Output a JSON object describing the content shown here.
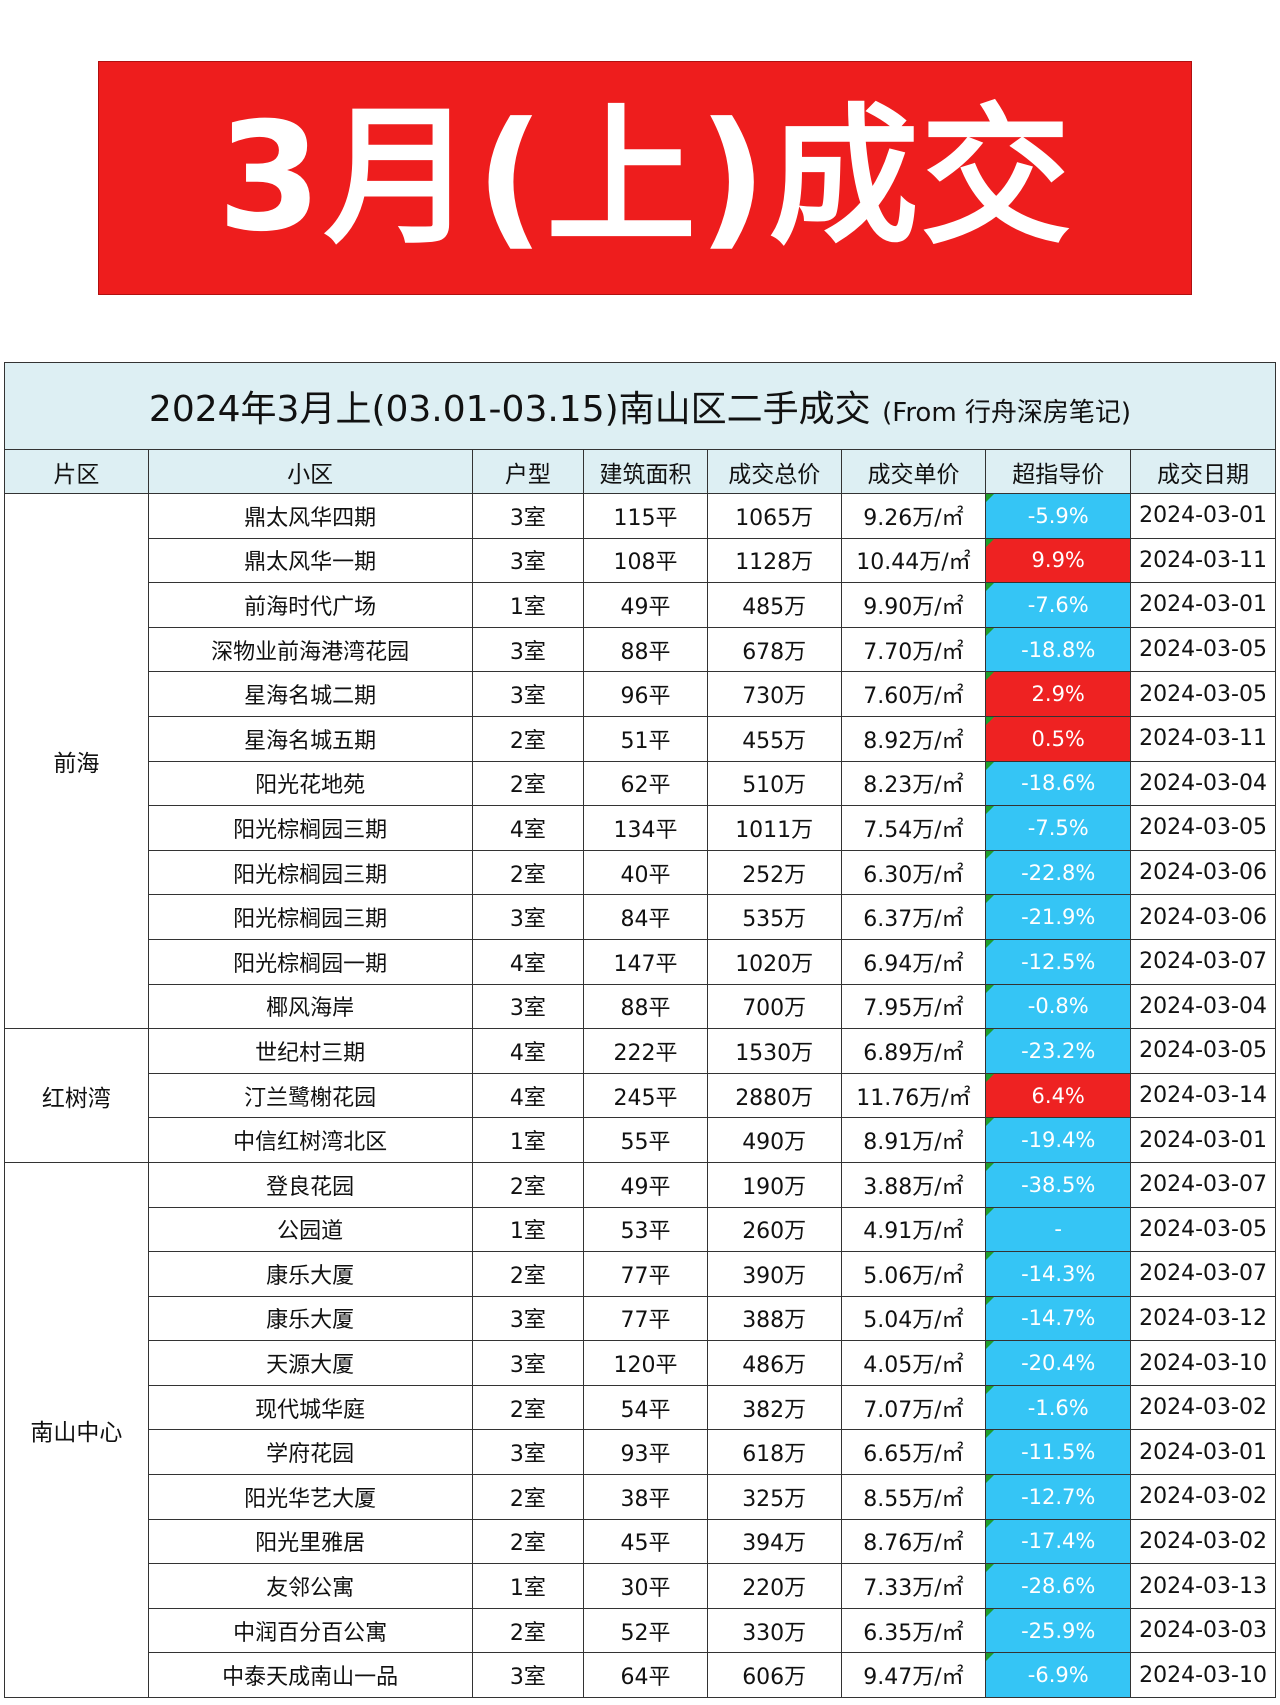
{
  "banner": {
    "text": "3月(上)成交"
  },
  "table": {
    "title_main": "2024年3月上(03.01-03.15)南山区二手成交",
    "title_source": "(From 行舟深房笔记)",
    "headers": [
      "片区",
      "小区",
      "户型",
      "建筑面积",
      "成交总价",
      "成交单价",
      "超指导价",
      "成交日期"
    ],
    "colors": {
      "negative": "#35c5f5",
      "positive": "#ee2222",
      "header_bg": "#ddeff3",
      "banner": "#ee1d1d"
    },
    "groups": [
      {
        "area": "前海",
        "rows": [
          [
            "鼎太风华四期",
            "3室",
            "115平",
            "1065万",
            "9.26万/㎡",
            "-5.9%",
            "2024-03-01"
          ],
          [
            "鼎太风华一期",
            "3室",
            "108平",
            "1128万",
            "10.44万/㎡",
            "9.9%",
            "2024-03-11"
          ],
          [
            "前海时代广场",
            "1室",
            "49平",
            "485万",
            "9.90万/㎡",
            "-7.6%",
            "2024-03-01"
          ],
          [
            "深物业前海港湾花园",
            "3室",
            "88平",
            "678万",
            "7.70万/㎡",
            "-18.8%",
            "2024-03-05"
          ],
          [
            "星海名城二期",
            "3室",
            "96平",
            "730万",
            "7.60万/㎡",
            "2.9%",
            "2024-03-05"
          ],
          [
            "星海名城五期",
            "2室",
            "51平",
            "455万",
            "8.92万/㎡",
            "0.5%",
            "2024-03-11"
          ],
          [
            "阳光花地苑",
            "2室",
            "62平",
            "510万",
            "8.23万/㎡",
            "-18.6%",
            "2024-03-04"
          ],
          [
            "阳光棕榈园三期",
            "4室",
            "134平",
            "1011万",
            "7.54万/㎡",
            "-7.5%",
            "2024-03-05"
          ],
          [
            "阳光棕榈园三期",
            "2室",
            "40平",
            "252万",
            "6.30万/㎡",
            "-22.8%",
            "2024-03-06"
          ],
          [
            "阳光棕榈园三期",
            "3室",
            "84平",
            "535万",
            "6.37万/㎡",
            "-21.9%",
            "2024-03-06"
          ],
          [
            "阳光棕榈园一期",
            "4室",
            "147平",
            "1020万",
            "6.94万/㎡",
            "-12.5%",
            "2024-03-07"
          ],
          [
            "椰风海岸",
            "3室",
            "88平",
            "700万",
            "7.95万/㎡",
            "-0.8%",
            "2024-03-04"
          ]
        ]
      },
      {
        "area": "红树湾",
        "rows": [
          [
            "世纪村三期",
            "4室",
            "222平",
            "1530万",
            "6.89万/㎡",
            "-23.2%",
            "2024-03-05"
          ],
          [
            "汀兰鹭榭花园",
            "4室",
            "245平",
            "2880万",
            "11.76万/㎡",
            "6.4%",
            "2024-03-14"
          ],
          [
            "中信红树湾北区",
            "1室",
            "55平",
            "490万",
            "8.91万/㎡",
            "-19.4%",
            "2024-03-01"
          ]
        ]
      },
      {
        "area": "南山中心",
        "rows": [
          [
            "登良花园",
            "2室",
            "49平",
            "190万",
            "3.88万/㎡",
            "-38.5%",
            "2024-03-07"
          ],
          [
            "公园道",
            "1室",
            "53平",
            "260万",
            "4.91万/㎡",
            "-",
            "2024-03-05"
          ],
          [
            "康乐大厦",
            "2室",
            "77平",
            "390万",
            "5.06万/㎡",
            "-14.3%",
            "2024-03-07"
          ],
          [
            "康乐大厦",
            "3室",
            "77平",
            "388万",
            "5.04万/㎡",
            "-14.7%",
            "2024-03-12"
          ],
          [
            "天源大厦",
            "3室",
            "120平",
            "486万",
            "4.05万/㎡",
            "-20.4%",
            "2024-03-10"
          ],
          [
            "现代城华庭",
            "2室",
            "54平",
            "382万",
            "7.07万/㎡",
            "-1.6%",
            "2024-03-02"
          ],
          [
            "学府花园",
            "3室",
            "93平",
            "618万",
            "6.65万/㎡",
            "-11.5%",
            "2024-03-01"
          ],
          [
            "阳光华艺大厦",
            "2室",
            "38平",
            "325万",
            "8.55万/㎡",
            "-12.7%",
            "2024-03-02"
          ],
          [
            "阳光里雅居",
            "2室",
            "45平",
            "394万",
            "8.76万/㎡",
            "-17.4%",
            "2024-03-02"
          ],
          [
            "友邻公寓",
            "1室",
            "30平",
            "220万",
            "7.33万/㎡",
            "-28.6%",
            "2024-03-13"
          ],
          [
            "中润百分百公寓",
            "2室",
            "52平",
            "330万",
            "6.35万/㎡",
            "-25.9%",
            "2024-03-03"
          ],
          [
            "中泰天成南山一品",
            "3室",
            "64平",
            "606万",
            "9.47万/㎡",
            "-6.9%",
            "2024-03-10"
          ]
        ]
      }
    ]
  }
}
